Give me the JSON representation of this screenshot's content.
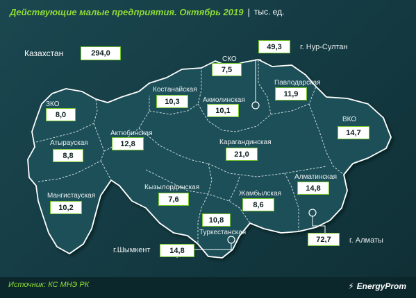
{
  "header": {
    "title": "Действующие малые предприятия. Октябрь 2019",
    "separator": "|",
    "unit": "тыс. ед."
  },
  "total": {
    "label": "Казахстан",
    "value": "294,0"
  },
  "regions": {
    "zko": {
      "name": "ЗКО",
      "value": "8,0"
    },
    "atyrau": {
      "name": "Атырауская",
      "value": "8,8"
    },
    "mangistau": {
      "name": "Мангистауская",
      "value": "10,2"
    },
    "aktobe": {
      "name": "Актюбинская",
      "value": "12,8"
    },
    "kostanay": {
      "name": "Костанайская",
      "value": "10,3"
    },
    "sko": {
      "name": "СКО",
      "value": "7,5"
    },
    "akmola": {
      "name": "Акмолинская",
      "value": "10,1"
    },
    "pavlodar": {
      "name": "Павлодарская",
      "value": "11,9"
    },
    "vko": {
      "name": "ВКО",
      "value": "14,7"
    },
    "karaganda": {
      "name": "Карагандинская",
      "value": "21,0"
    },
    "kyzylorda": {
      "name": "Кызылординская",
      "value": "7,6"
    },
    "zhambyl": {
      "name": "Жамбылская",
      "value": "8,6"
    },
    "almaty_obl": {
      "name": "Алматинская",
      "value": "14,8"
    },
    "turkestan": {
      "name": "Туркестанская",
      "value": "10,8"
    }
  },
  "cities": {
    "nursultan": {
      "name": "г. Нур-Султан",
      "value": "49,3"
    },
    "almaty": {
      "name": "г. Алматы",
      "value": "72,7"
    },
    "shymkent": {
      "name": "г.Шымкент",
      "value": "14,8"
    }
  },
  "footer": {
    "source": "Источник: КС МНЭ РК",
    "brand": "EnergyProm"
  },
  "colors": {
    "background": "#153c44",
    "map_fill": "#1f4f59",
    "borders": "#c9d6d8",
    "accent": "#8fdc34",
    "value_border": "#76c72b"
  }
}
